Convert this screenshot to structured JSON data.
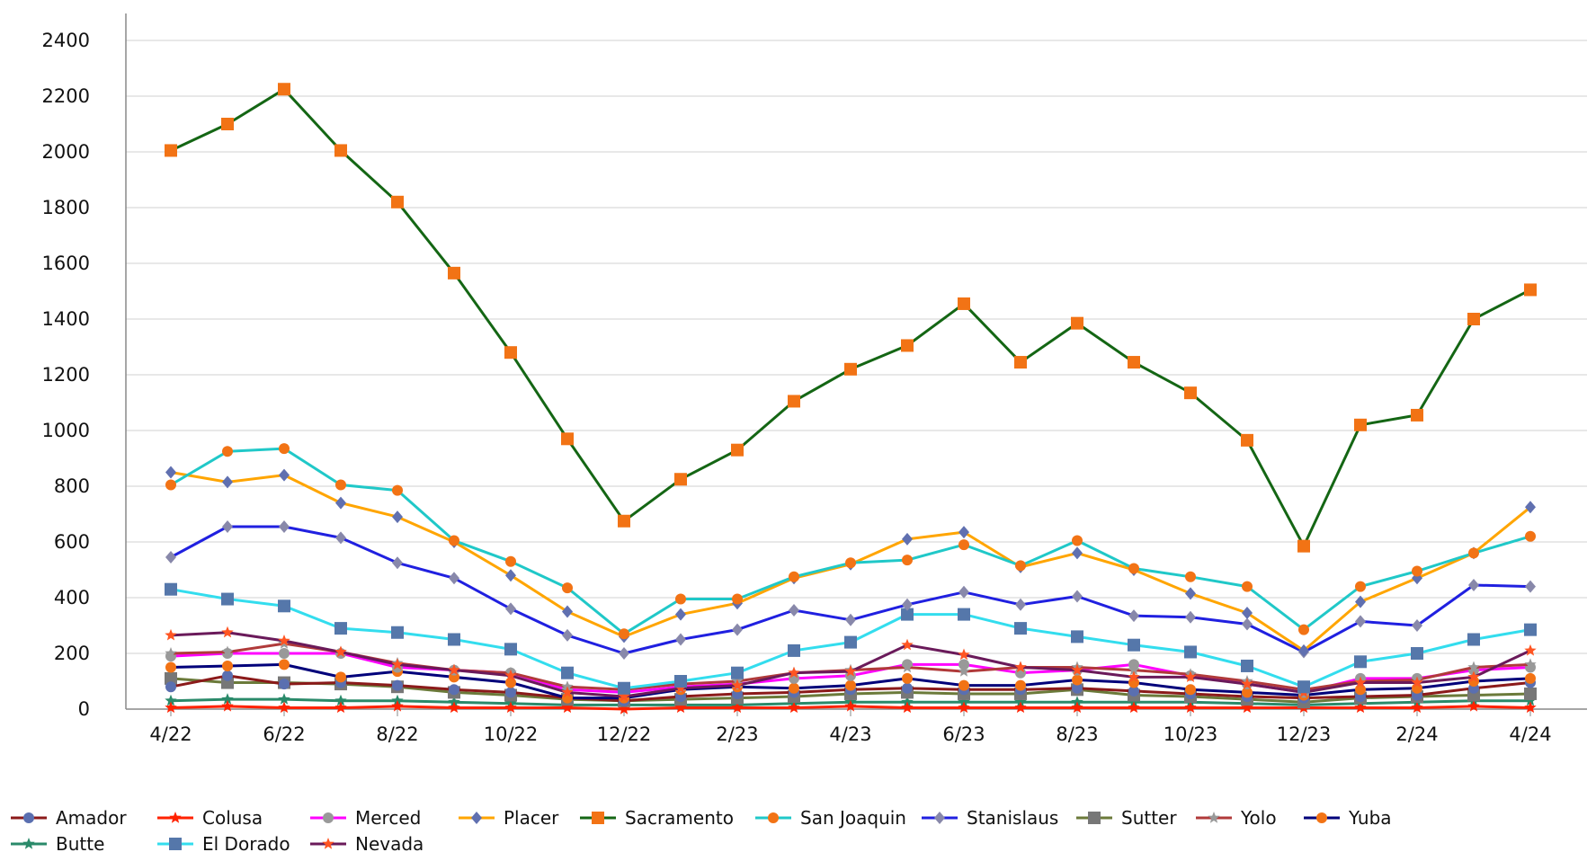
{
  "chart_data": {
    "type": "line",
    "title": "",
    "xlabel": "",
    "ylabel": "",
    "ylim": [
      0,
      2500
    ],
    "yticks": [
      0,
      200,
      400,
      600,
      800,
      1000,
      1200,
      1400,
      1600,
      1800,
      2000,
      2200,
      2400
    ],
    "grid": true,
    "legend_position": "bottom",
    "categories": [
      "4/22",
      "5/22",
      "6/22",
      "7/22",
      "8/22",
      "9/22",
      "10/22",
      "11/22",
      "12/22",
      "1/23",
      "2/23",
      "3/23",
      "4/23",
      "5/23",
      "6/23",
      "7/23",
      "8/23",
      "9/23",
      "10/23",
      "11/23",
      "12/23",
      "1/24",
      "2/24",
      "3/24",
      "4/24"
    ],
    "tick_labels": [
      "4/22",
      "6/22",
      "8/22",
      "10/22",
      "12/22",
      "2/23",
      "4/23",
      "6/23",
      "8/23",
      "10/23",
      "12/23",
      "2/24",
      "4/24"
    ],
    "series": [
      {
        "name": "Amador",
        "color": "#8b1a1a",
        "marker": "#5a6fb0",
        "shape": "circle",
        "values": [
          80,
          120,
          90,
          95,
          85,
          70,
          60,
          40,
          30,
          45,
          55,
          60,
          70,
          75,
          70,
          70,
          75,
          65,
          55,
          45,
          40,
          45,
          50,
          75,
          95
        ]
      },
      {
        "name": "Colusa",
        "color": "#ff2200",
        "marker": "#ff2200",
        "shape": "star",
        "values": [
          5,
          10,
          5,
          5,
          10,
          5,
          5,
          5,
          0,
          5,
          5,
          5,
          10,
          5,
          5,
          5,
          5,
          5,
          5,
          5,
          5,
          5,
          5,
          10,
          5
        ]
      },
      {
        "name": "Merced",
        "color": "#ff00ff",
        "marker": "#999999",
        "shape": "circle",
        "values": [
          190,
          200,
          200,
          200,
          150,
          140,
          130,
          70,
          60,
          80,
          90,
          110,
          120,
          160,
          160,
          130,
          140,
          160,
          120,
          90,
          60,
          110,
          110,
          140,
          150
        ]
      },
      {
        "name": "Placer",
        "color": "#ffa500",
        "marker": "#6070b0",
        "shape": "diamond",
        "values": [
          850,
          815,
          840,
          740,
          690,
          600,
          480,
          350,
          260,
          340,
          380,
          470,
          520,
          610,
          635,
          510,
          560,
          500,
          415,
          345,
          210,
          385,
          470,
          560,
          725
        ]
      },
      {
        "name": "Sacramento",
        "color": "#146614",
        "marker": "#f27315",
        "shape": "square",
        "values": [
          2005,
          2100,
          2225,
          2005,
          1820,
          1565,
          1280,
          970,
          675,
          825,
          930,
          1105,
          1220,
          1305,
          1455,
          1245,
          1385,
          1245,
          1135,
          965,
          585,
          1020,
          1055,
          1400,
          1505
        ]
      },
      {
        "name": "San Joaquin",
        "color": "#20c8c8",
        "marker": "#f27315",
        "shape": "circle",
        "values": [
          805,
          925,
          935,
          805,
          785,
          605,
          530,
          435,
          270,
          395,
          395,
          475,
          525,
          535,
          590,
          515,
          605,
          505,
          475,
          440,
          285,
          440,
          495,
          560,
          620
        ]
      },
      {
        "name": "Stanislaus",
        "color": "#2020e0",
        "marker": "#8888aa",
        "shape": "diamond",
        "values": [
          545,
          655,
          655,
          615,
          525,
          470,
          360,
          265,
          200,
          250,
          285,
          355,
          320,
          375,
          420,
          375,
          405,
          335,
          330,
          305,
          205,
          315,
          300,
          445,
          440
        ]
      },
      {
        "name": "Sutter",
        "color": "#6b7a3a",
        "marker": "#777777",
        "shape": "square",
        "values": [
          110,
          95,
          95,
          90,
          80,
          60,
          50,
          35,
          30,
          35,
          40,
          45,
          55,
          60,
          55,
          55,
          70,
          50,
          45,
          35,
          25,
          40,
          45,
          50,
          55
        ]
      },
      {
        "name": "Yolo",
        "color": "#b03a3a",
        "marker": "#999999",
        "shape": "star",
        "values": [
          200,
          205,
          235,
          205,
          165,
          140,
          130,
          80,
          70,
          90,
          100,
          130,
          140,
          150,
          135,
          150,
          150,
          140,
          125,
          100,
          70,
          100,
          105,
          150,
          160
        ]
      },
      {
        "name": "Yuba",
        "color": "#00007a",
        "marker": "#f27315",
        "shape": "circle",
        "values": [
          150,
          155,
          160,
          115,
          135,
          115,
          95,
          40,
          40,
          70,
          80,
          75,
          85,
          110,
          85,
          85,
          105,
          95,
          70,
          60,
          50,
          70,
          75,
          100,
          110
        ]
      },
      {
        "name": "Butte",
        "color": "#2a8a6a",
        "marker": "#2a8a6a",
        "shape": "star",
        "values": [
          30,
          35,
          35,
          30,
          30,
          25,
          20,
          15,
          15,
          15,
          15,
          20,
          25,
          25,
          25,
          25,
          25,
          25,
          25,
          20,
          15,
          20,
          25,
          30,
          30
        ]
      },
      {
        "name": "El Dorado",
        "color": "#33ddee",
        "marker": "#5577aa",
        "shape": "square",
        "values": [
          430,
          395,
          370,
          290,
          275,
          250,
          215,
          130,
          75,
          100,
          130,
          210,
          240,
          340,
          340,
          290,
          260,
          230,
          205,
          155,
          80,
          170,
          200,
          250,
          285
        ]
      },
      {
        "name": "Nevada",
        "color": "#6a1a5a",
        "marker": "#ff5522",
        "shape": "star",
        "values": [
          265,
          275,
          245,
          205,
          160,
          140,
          120,
          60,
          45,
          75,
          85,
          130,
          135,
          230,
          195,
          150,
          140,
          115,
          115,
          90,
          60,
          95,
          95,
          115,
          210
        ]
      }
    ]
  }
}
